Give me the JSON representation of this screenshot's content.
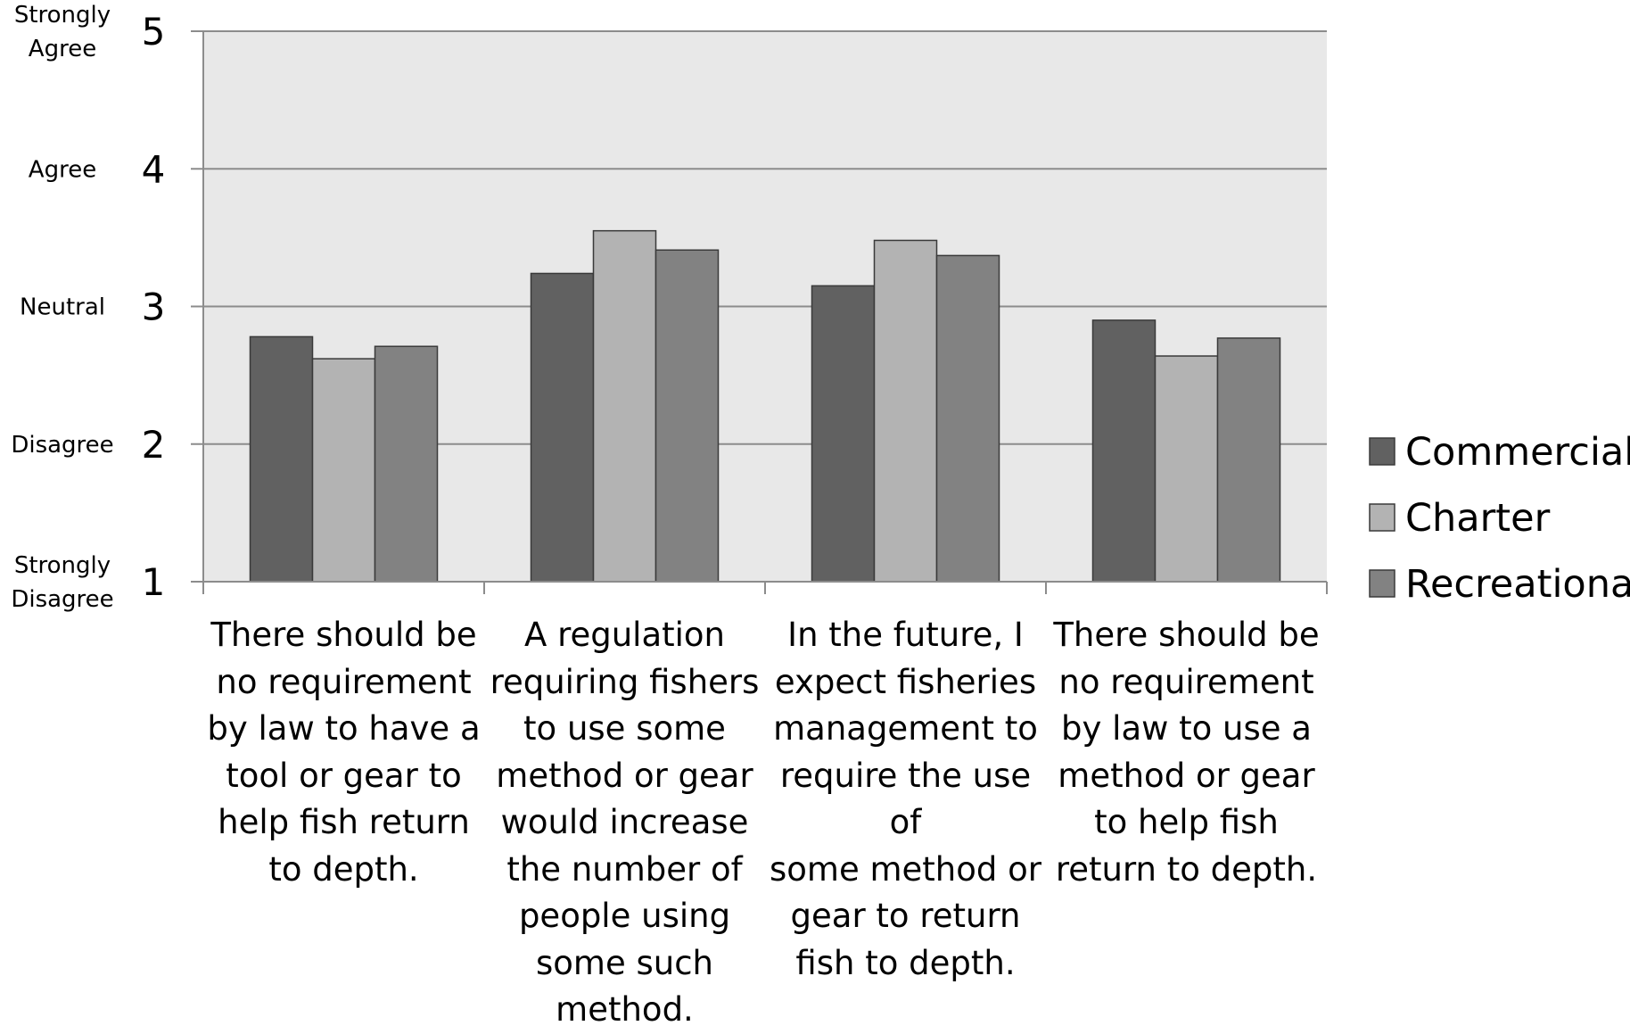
{
  "chart_data": {
    "type": "bar",
    "categories": [
      "There should be no requirement by law to have a tool or gear to help fish return to depth.",
      "A regulation requiring fishers to use some method or gear would increase the number of people using some such method.",
      "In the future, I expect fisheries management to require the use of some method or gear to return fish to depth.",
      "There should be no requirement by law to use a method or gear to help fish return to depth."
    ],
    "category_lines": [
      [
        "There should be",
        "no requirement",
        "by law to have a",
        "tool or gear to",
        "help fish return",
        "to depth."
      ],
      [
        "A regulation",
        "requiring fishers",
        "to use some",
        "method or gear",
        "would increase",
        "the number of",
        "people using",
        "some such",
        "method."
      ],
      [
        "In the future, I",
        "expect fisheries",
        "management to",
        "require the use of",
        "some method or",
        "gear to return",
        "fish to depth."
      ],
      [
        "There should be",
        "no requirement",
        "by law to use a",
        "method or gear",
        "to help fish",
        "return to depth."
      ]
    ],
    "series": [
      {
        "name": "Commercial",
        "values": [
          2.78,
          3.24,
          3.15,
          2.9
        ]
      },
      {
        "name": "Charter",
        "values": [
          2.62,
          3.55,
          3.48,
          2.64
        ]
      },
      {
        "name": "Recreational",
        "values": [
          2.71,
          3.41,
          3.37,
          2.77
        ]
      }
    ],
    "ylim": [
      1,
      5
    ],
    "yticks": [
      1,
      2,
      3,
      4,
      5
    ],
    "likert_labels": [
      {
        "value": 5,
        "lines": [
          "Strongly",
          "Agree"
        ]
      },
      {
        "value": 4,
        "lines": [
          "Agree"
        ]
      },
      {
        "value": 3,
        "lines": [
          "Neutral"
        ]
      },
      {
        "value": 2,
        "lines": [
          "Disagree"
        ]
      },
      {
        "value": 1,
        "lines": [
          "Strongly",
          "Disagree"
        ]
      }
    ],
    "grid": true,
    "legend_position": "right",
    "colors": {
      "Commercial": "#616161",
      "Charter": "#b3b3b3",
      "Recreational": "#828282",
      "plot_background": "#e8e8e8",
      "gridline": "#8c8c8c",
      "bar_edge": "#3a3a3a"
    }
  }
}
